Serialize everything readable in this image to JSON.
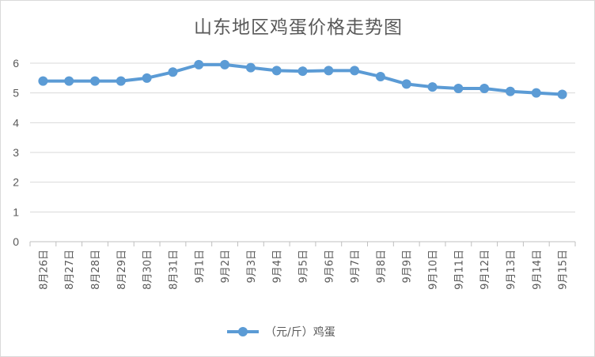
{
  "chart_data": {
    "type": "line",
    "title": "山东地区鸡蛋价格走势图",
    "categories": [
      "8月26日",
      "8月27日",
      "8月28日",
      "8月29日",
      "8月30日",
      "8月31日",
      "9月1日",
      "9月2日",
      "9月3日",
      "9月4日",
      "9月5日",
      "9月6日",
      "9月7日",
      "9月8日",
      "9月9日",
      "9月10日",
      "9月11日",
      "9月12日",
      "9月13日",
      "9月14日",
      "9月15日"
    ],
    "series": [
      {
        "name": "（元/斤）鸡蛋",
        "color": "#5b9bd5",
        "values": [
          5.4,
          5.4,
          5.4,
          5.4,
          5.5,
          5.7,
          5.95,
          5.95,
          5.85,
          5.75,
          5.73,
          5.75,
          5.75,
          5.55,
          5.3,
          5.2,
          5.15,
          5.15,
          5.05,
          5.0,
          4.95
        ]
      }
    ],
    "yticks": [
      "0",
      "1",
      "2",
      "3",
      "4",
      "5",
      "6"
    ],
    "ylim": [
      0,
      6
    ],
    "grid": true,
    "legend": "bottom"
  }
}
